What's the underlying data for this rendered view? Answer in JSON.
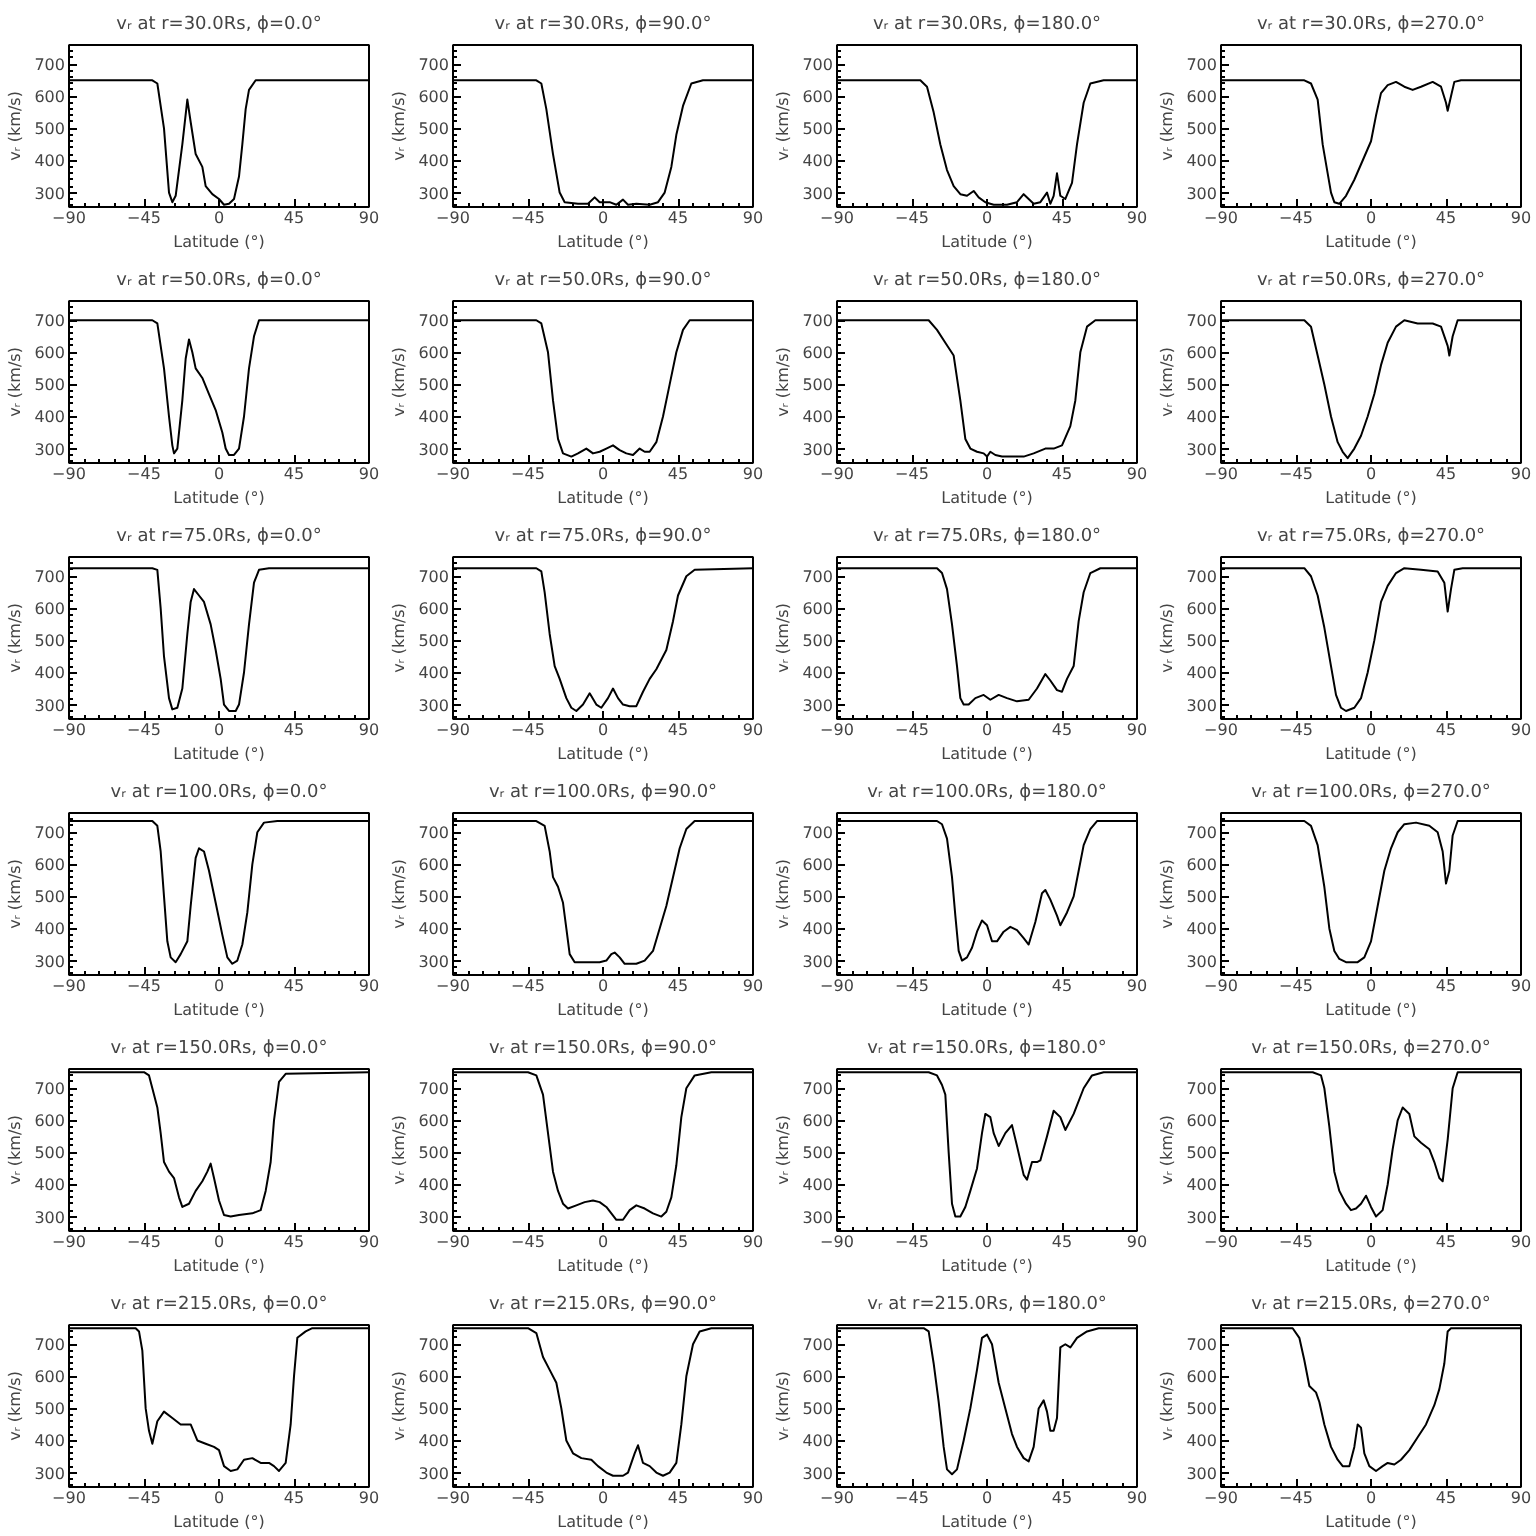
{
  "chart_data": [
    {
      "type": "line",
      "title": "vᵣ at r=30.0Rs, ϕ=0.0°",
      "xlabel": "Latitude (°)",
      "ylabel": "vᵣ (km/s)",
      "xlim": [
        -90,
        90
      ],
      "ylim": [
        255,
        760
      ],
      "xticks": [
        -90,
        -45,
        0,
        45,
        90
      ],
      "yticks": [
        300,
        400,
        500,
        600,
        700
      ],
      "x": [
        -90,
        -40,
        -37,
        -33,
        -30,
        -28,
        -26,
        -22,
        -19,
        -17,
        -14,
        -10,
        -8,
        -4,
        0,
        3,
        6,
        9,
        12,
        14,
        16,
        18,
        22,
        90
      ],
      "series": [
        {
          "color": "#000000",
          "values": [
            650,
            650,
            640,
            500,
            300,
            270,
            290,
            450,
            590,
            520,
            420,
            380,
            320,
            295,
            280,
            262,
            265,
            280,
            350,
            450,
            560,
            620,
            650,
            650
          ]
        }
      ]
    },
    {
      "type": "line",
      "title": "vᵣ at r=30.0Rs, ϕ=90.0°",
      "xlabel": "Latitude (°)",
      "ylabel": "vᵣ (km/s)",
      "xlim": [
        -90,
        90
      ],
      "ylim": [
        255,
        760
      ],
      "xticks": [
        -90,
        -45,
        0,
        45,
        90
      ],
      "yticks": [
        300,
        400,
        500,
        600,
        700
      ],
      "x": [
        -90,
        -40,
        -37,
        -34,
        -30,
        -26,
        -23,
        -15,
        -9,
        -5,
        -2,
        4,
        8,
        12,
        15,
        20,
        28,
        33,
        37,
        41,
        44,
        48,
        53,
        60,
        90
      ],
      "series": [
        {
          "color": "#000000",
          "values": [
            650,
            650,
            640,
            560,
            420,
            300,
            270,
            265,
            265,
            285,
            270,
            270,
            262,
            278,
            262,
            265,
            262,
            270,
            300,
            380,
            480,
            570,
            640,
            650,
            650
          ]
        }
      ]
    },
    {
      "type": "line",
      "title": "vᵣ at r=30.0Rs, ϕ=180.0°",
      "xlabel": "Latitude (°)",
      "ylabel": "vᵣ (km/s)",
      "xlim": [
        -90,
        90
      ],
      "ylim": [
        255,
        760
      ],
      "xticks": [
        -90,
        -45,
        0,
        45,
        90
      ],
      "yticks": [
        300,
        400,
        500,
        600,
        700
      ],
      "x": [
        -90,
        -40,
        -36,
        -32,
        -28,
        -24,
        -20,
        -16,
        -12,
        -8,
        -5,
        -1,
        4,
        8,
        12,
        18,
        22,
        25,
        28,
        32,
        36,
        38,
        40,
        42,
        44,
        47,
        51,
        54,
        58,
        62,
        70,
        90
      ],
      "series": [
        {
          "color": "#000000",
          "values": [
            650,
            650,
            630,
            550,
            450,
            370,
            320,
            295,
            290,
            305,
            285,
            270,
            262,
            262,
            262,
            270,
            295,
            280,
            265,
            270,
            300,
            265,
            290,
            360,
            290,
            280,
            330,
            450,
            580,
            640,
            650,
            650
          ]
        }
      ]
    },
    {
      "type": "line",
      "title": "vᵣ at r=30.0Rs, ϕ=270.0°",
      "xlabel": "Latitude (°)",
      "ylabel": "vᵣ (km/s)",
      "xlim": [
        -90,
        90
      ],
      "ylim": [
        255,
        760
      ],
      "xticks": [
        -90,
        -45,
        0,
        45,
        90
      ],
      "yticks": [
        300,
        400,
        500,
        600,
        700
      ],
      "x": [
        -90,
        -40,
        -36,
        -32,
        -29,
        -26,
        -24,
        -22,
        -19,
        -15,
        -10,
        -5,
        0,
        3,
        6,
        10,
        15,
        20,
        25,
        30,
        37,
        42,
        45,
        46,
        48,
        50,
        54,
        90
      ],
      "series": [
        {
          "color": "#000000",
          "values": [
            650,
            650,
            640,
            590,
            450,
            360,
            300,
            270,
            265,
            290,
            340,
            400,
            460,
            540,
            610,
            635,
            645,
            630,
            620,
            630,
            645,
            630,
            580,
            555,
            600,
            645,
            650,
            650
          ]
        }
      ]
    },
    {
      "type": "line",
      "title": "vᵣ at r=50.0Rs, ϕ=0.0°",
      "xlabel": "Latitude (°)",
      "ylabel": "vᵣ (km/s)",
      "xlim": [
        -90,
        90
      ],
      "ylim": [
        255,
        760
      ],
      "xticks": [
        -90,
        -45,
        0,
        45,
        90
      ],
      "yticks": [
        300,
        400,
        500,
        600,
        700
      ],
      "x": [
        -90,
        -40,
        -37,
        -33,
        -30,
        -28,
        -27,
        -25,
        -22,
        -20,
        -18,
        -16,
        -14,
        -10,
        -6,
        -2,
        2,
        4,
        6,
        9,
        12,
        15,
        18,
        21,
        24,
        90
      ],
      "series": [
        {
          "color": "#000000",
          "values": [
            700,
            700,
            690,
            550,
            400,
            310,
            285,
            300,
            450,
            580,
            640,
            600,
            550,
            520,
            470,
            420,
            350,
            300,
            280,
            280,
            300,
            400,
            550,
            650,
            700,
            700
          ]
        }
      ]
    },
    {
      "type": "line",
      "title": "vᵣ at r=50.0Rs, ϕ=90.0°",
      "xlabel": "Latitude (°)",
      "ylabel": "vᵣ (km/s)",
      "xlim": [
        -90,
        90
      ],
      "ylim": [
        255,
        760
      ],
      "xticks": [
        -90,
        -45,
        0,
        45,
        90
      ],
      "yticks": [
        300,
        400,
        500,
        600,
        700
      ],
      "x": [
        -90,
        -40,
        -37,
        -33,
        -30,
        -27,
        -24,
        -19,
        -15,
        -10,
        -6,
        -2,
        2,
        6,
        10,
        14,
        18,
        22,
        25,
        28,
        32,
        36,
        40,
        44,
        48,
        52,
        90
      ],
      "series": [
        {
          "color": "#000000",
          "values": [
            700,
            700,
            690,
            600,
            450,
            330,
            285,
            275,
            285,
            300,
            285,
            290,
            300,
            310,
            295,
            285,
            280,
            300,
            290,
            290,
            320,
            400,
            500,
            600,
            670,
            700,
            700
          ]
        }
      ]
    },
    {
      "type": "line",
      "title": "vᵣ at r=50.0Rs, ϕ=180.0°",
      "xlabel": "Latitude (°)",
      "ylabel": "vᵣ (km/s)",
      "xlim": [
        -90,
        90
      ],
      "ylim": [
        255,
        760
      ],
      "xticks": [
        -90,
        -45,
        0,
        45,
        90
      ],
      "yticks": [
        300,
        400,
        500,
        600,
        700
      ],
      "x": [
        -90,
        -35,
        -30,
        -25,
        -20,
        -16,
        -13,
        -10,
        -6,
        -2,
        0,
        2,
        5,
        9,
        15,
        22,
        28,
        35,
        40,
        45,
        50,
        53,
        56,
        60,
        65,
        90
      ],
      "series": [
        {
          "color": "#000000",
          "values": [
            700,
            700,
            670,
            630,
            590,
            450,
            330,
            300,
            290,
            285,
            275,
            290,
            280,
            275,
            275,
            275,
            285,
            300,
            300,
            310,
            370,
            450,
            600,
            680,
            700,
            700
          ]
        }
      ]
    },
    {
      "type": "line",
      "title": "vᵣ at r=50.0Rs, ϕ=270.0°",
      "xlabel": "Latitude (°)",
      "ylabel": "vᵣ (km/s)",
      "xlim": [
        -90,
        90
      ],
      "ylim": [
        255,
        760
      ],
      "xticks": [
        -90,
        -45,
        0,
        45,
        90
      ],
      "yticks": [
        300,
        400,
        500,
        600,
        700
      ],
      "x": [
        -90,
        -40,
        -36,
        -32,
        -28,
        -24,
        -20,
        -17,
        -14,
        -10,
        -6,
        -2,
        2,
        6,
        10,
        15,
        20,
        28,
        37,
        42,
        46,
        47,
        49,
        52,
        90
      ],
      "series": [
        {
          "color": "#000000",
          "values": [
            700,
            700,
            680,
            590,
            500,
            400,
            320,
            290,
            270,
            300,
            340,
            400,
            470,
            560,
            630,
            680,
            700,
            690,
            690,
            680,
            620,
            590,
            650,
            700,
            700
          ]
        }
      ]
    },
    {
      "type": "line",
      "title": "vᵣ at r=75.0Rs, ϕ=0.0°",
      "xlabel": "Latitude (°)",
      "ylabel": "vᵣ (km/s)",
      "xlim": [
        -90,
        90
      ],
      "ylim": [
        255,
        760
      ],
      "xticks": [
        -90,
        -45,
        0,
        45,
        90
      ],
      "yticks": [
        300,
        400,
        500,
        600,
        700
      ],
      "x": [
        -90,
        -40,
        -37,
        -35,
        -33,
        -30,
        -28,
        -25,
        -22,
        -19,
        -17,
        -15,
        -12,
        -9,
        -5,
        -2,
        1,
        3,
        6,
        10,
        12,
        15,
        18,
        21,
        24,
        30,
        90
      ],
      "series": [
        {
          "color": "#000000",
          "values": [
            725,
            725,
            720,
            600,
            450,
            320,
            285,
            290,
            350,
            520,
            620,
            660,
            640,
            620,
            550,
            470,
            380,
            300,
            280,
            280,
            300,
            400,
            550,
            680,
            720,
            725,
            725
          ]
        }
      ]
    },
    {
      "type": "line",
      "title": "vᵣ at r=75.0Rs, ϕ=90.0°",
      "xlabel": "Latitude (°)",
      "ylabel": "vᵣ (km/s)",
      "xlim": [
        -90,
        90
      ],
      "ylim": [
        255,
        760
      ],
      "xticks": [
        -90,
        -45,
        0,
        45,
        90
      ],
      "yticks": [
        300,
        400,
        500,
        600,
        700
      ],
      "x": [
        -90,
        -40,
        -37,
        -35,
        -32,
        -29,
        -26,
        -22,
        -19,
        -16,
        -12,
        -8,
        -4,
        -1,
        3,
        6,
        9,
        12,
        16,
        20,
        24,
        28,
        32,
        38,
        42,
        45,
        50,
        55,
        90
      ],
      "series": [
        {
          "color": "#000000",
          "values": [
            725,
            725,
            715,
            650,
            520,
            420,
            380,
            320,
            290,
            280,
            300,
            335,
            300,
            290,
            320,
            350,
            320,
            300,
            295,
            295,
            340,
            380,
            410,
            470,
            560,
            640,
            700,
            720,
            725
          ]
        }
      ]
    },
    {
      "type": "line",
      "title": "vᵣ at r=75.0Rs, ϕ=180.0°",
      "xlabel": "Latitude (°)",
      "ylabel": "vᵣ (km/s)",
      "xlim": [
        -90,
        90
      ],
      "ylim": [
        255,
        760
      ],
      "xticks": [
        -90,
        -45,
        0,
        45,
        90
      ],
      "yticks": [
        300,
        400,
        500,
        600,
        700
      ],
      "x": [
        -90,
        -30,
        -27,
        -24,
        -21,
        -18,
        -16,
        -14,
        -11,
        -7,
        -2,
        2,
        7,
        12,
        18,
        25,
        30,
        35,
        38,
        42,
        45,
        48,
        52,
        55,
        58,
        62,
        68,
        90
      ],
      "series": [
        {
          "color": "#000000",
          "values": [
            725,
            725,
            710,
            660,
            550,
            420,
            320,
            300,
            300,
            320,
            330,
            315,
            330,
            320,
            310,
            315,
            350,
            395,
            375,
            345,
            340,
            380,
            420,
            560,
            650,
            710,
            725,
            725
          ]
        }
      ]
    },
    {
      "type": "line",
      "title": "vᵣ at r=75.0Rs, ϕ=270.0°",
      "xlabel": "Latitude (°)",
      "ylabel": "vᵣ (km/s)",
      "xlim": [
        -90,
        90
      ],
      "ylim": [
        255,
        760
      ],
      "xticks": [
        -90,
        -45,
        0,
        45,
        90
      ],
      "yticks": [
        300,
        400,
        500,
        600,
        700
      ],
      "x": [
        -90,
        -40,
        -36,
        -32,
        -28,
        -24,
        -21,
        -18,
        -15,
        -10,
        -6,
        -2,
        2,
        6,
        10,
        15,
        20,
        30,
        40,
        44,
        46,
        48,
        50,
        55,
        90
      ],
      "series": [
        {
          "color": "#000000",
          "values": [
            725,
            725,
            700,
            640,
            540,
            420,
            330,
            290,
            280,
            290,
            320,
            400,
            500,
            620,
            670,
            710,
            725,
            720,
            715,
            680,
            590,
            660,
            720,
            725,
            725
          ]
        }
      ]
    },
    {
      "type": "line",
      "title": "vᵣ at r=100.0Rs, ϕ=0.0°",
      "xlabel": "Latitude (°)",
      "ylabel": "vᵣ (km/s)",
      "xlim": [
        -90,
        90
      ],
      "ylim": [
        255,
        760
      ],
      "xticks": [
        -90,
        -45,
        0,
        45,
        90
      ],
      "yticks": [
        300,
        400,
        500,
        600,
        700
      ],
      "x": [
        -90,
        -40,
        -37,
        -35,
        -33,
        -31,
        -29,
        -26,
        -23,
        -19,
        -17,
        -14,
        -12,
        -9,
        -6,
        -2,
        2,
        5,
        8,
        11,
        14,
        17,
        20,
        23,
        27,
        35,
        90
      ],
      "series": [
        {
          "color": "#000000",
          "values": [
            735,
            735,
            720,
            640,
            500,
            360,
            310,
            295,
            320,
            360,
            470,
            620,
            650,
            640,
            580,
            480,
            380,
            310,
            290,
            300,
            350,
            450,
            600,
            700,
            730,
            735,
            735
          ]
        }
      ]
    },
    {
      "type": "line",
      "title": "vᵣ at r=100.0Rs, ϕ=90.0°",
      "xlabel": "Latitude (°)",
      "ylabel": "vᵣ (km/s)",
      "xlim": [
        -90,
        90
      ],
      "ylim": [
        255,
        760
      ],
      "xticks": [
        -90,
        -45,
        0,
        45,
        90
      ],
      "yticks": [
        300,
        400,
        500,
        600,
        700
      ],
      "x": [
        -90,
        -40,
        -35,
        -32,
        -30,
        -27,
        -24,
        -22,
        -20,
        -17,
        -10,
        -2,
        2,
        5,
        7,
        10,
        13,
        20,
        25,
        30,
        34,
        38,
        42,
        46,
        50,
        55,
        90
      ],
      "series": [
        {
          "color": "#000000",
          "values": [
            735,
            735,
            720,
            640,
            560,
            530,
            480,
            400,
            320,
            295,
            295,
            295,
            300,
            320,
            325,
            310,
            290,
            290,
            300,
            330,
            400,
            470,
            560,
            650,
            710,
            735,
            735
          ]
        }
      ]
    },
    {
      "type": "line",
      "title": "vᵣ at r=100.0Rs, ϕ=180.0°",
      "xlabel": "Latitude (°)",
      "ylabel": "vᵣ (km/s)",
      "xlim": [
        -90,
        90
      ],
      "ylim": [
        255,
        760
      ],
      "xticks": [
        -90,
        -45,
        0,
        45,
        90
      ],
      "yticks": [
        300,
        400,
        500,
        600,
        700
      ],
      "x": [
        -90,
        -30,
        -27,
        -24,
        -21,
        -19,
        -17,
        -15,
        -12,
        -9,
        -6,
        -3,
        0,
        3,
        6,
        10,
        14,
        18,
        22,
        25,
        29,
        33,
        35,
        38,
        42,
        44,
        48,
        52,
        55,
        58,
        62,
        66,
        90
      ],
      "series": [
        {
          "color": "#000000",
          "values": [
            735,
            735,
            725,
            680,
            560,
            440,
            330,
            300,
            310,
            340,
            390,
            425,
            410,
            360,
            360,
            390,
            405,
            395,
            370,
            350,
            420,
            510,
            520,
            490,
            440,
            410,
            450,
            500,
            580,
            660,
            710,
            735,
            735
          ]
        }
      ]
    },
    {
      "type": "line",
      "title": "vᵣ at r=100.0Rs, ϕ=270.0°",
      "xlabel": "Latitude (°)",
      "ylabel": "vᵣ (km/s)",
      "xlim": [
        -90,
        90
      ],
      "ylim": [
        255,
        760
      ],
      "xticks": [
        -90,
        -45,
        0,
        45,
        90
      ],
      "yticks": [
        300,
        400,
        500,
        600,
        700
      ],
      "x": [
        -90,
        -40,
        -36,
        -32,
        -28,
        -25,
        -22,
        -19,
        -15,
        -8,
        -4,
        0,
        4,
        8,
        12,
        16,
        20,
        27,
        35,
        40,
        43,
        45,
        47,
        49,
        52,
        90
      ],
      "series": [
        {
          "color": "#000000",
          "values": [
            735,
            735,
            720,
            660,
            530,
            400,
            330,
            305,
            295,
            295,
            310,
            360,
            470,
            580,
            650,
            700,
            725,
            730,
            720,
            700,
            640,
            540,
            580,
            690,
            735,
            735
          ]
        }
      ]
    },
    {
      "type": "line",
      "title": "vᵣ at r=150.0Rs, ϕ=0.0°",
      "xlabel": "Latitude (°)",
      "ylabel": "vᵣ (km/s)",
      "xlim": [
        -90,
        90
      ],
      "ylim": [
        255,
        760
      ],
      "xticks": [
        -90,
        -45,
        0,
        45,
        90
      ],
      "yticks": [
        300,
        400,
        500,
        600,
        700
      ],
      "x": [
        -90,
        -45,
        -42,
        -40,
        -37,
        -35,
        -33,
        -30,
        -27,
        -24,
        -22,
        -18,
        -14,
        -10,
        -7,
        -5,
        -3,
        0,
        3,
        7,
        12,
        20,
        25,
        28,
        31,
        33,
        36,
        40,
        90
      ],
      "series": [
        {
          "color": "#000000",
          "values": [
            750,
            750,
            740,
            700,
            640,
            560,
            470,
            440,
            420,
            360,
            330,
            340,
            380,
            410,
            440,
            465,
            420,
            350,
            305,
            300,
            305,
            310,
            320,
            380,
            470,
            600,
            720,
            745,
            750
          ]
        }
      ]
    },
    {
      "type": "line",
      "title": "vᵣ at r=150.0Rs, ϕ=90.0°",
      "xlabel": "Latitude (°)",
      "ylabel": "vᵣ (km/s)",
      "xlim": [
        -90,
        90
      ],
      "ylim": [
        255,
        760
      ],
      "xticks": [
        -90,
        -45,
        0,
        45,
        90
      ],
      "yticks": [
        300,
        400,
        500,
        600,
        700
      ],
      "x": [
        -90,
        -45,
        -40,
        -36,
        -33,
        -30,
        -27,
        -24,
        -21,
        -16,
        -11,
        -6,
        -2,
        2,
        5,
        8,
        12,
        16,
        20,
        25,
        30,
        35,
        38,
        41,
        44,
        47,
        50,
        55,
        65,
        90
      ],
      "series": [
        {
          "color": "#000000",
          "values": [
            750,
            750,
            740,
            680,
            560,
            440,
            380,
            340,
            325,
            335,
            345,
            350,
            345,
            330,
            310,
            290,
            290,
            320,
            335,
            325,
            310,
            300,
            315,
            360,
            460,
            610,
            700,
            740,
            750,
            750
          ]
        }
      ]
    },
    {
      "type": "line",
      "title": "vᵣ at r=150.0Rs, ϕ=180.0°",
      "xlabel": "Latitude (°)",
      "ylabel": "vᵣ (km/s)",
      "xlim": [
        -90,
        90
      ],
      "ylim": [
        255,
        760
      ],
      "xticks": [
        -90,
        -45,
        0,
        45,
        90
      ],
      "yticks": [
        300,
        400,
        500,
        600,
        700
      ],
      "x": [
        -90,
        -35,
        -30,
        -27,
        -25,
        -23,
        -21,
        -19,
        -16,
        -13,
        -10,
        -6,
        -3,
        -1,
        2,
        4,
        7,
        11,
        15,
        18,
        22,
        24,
        27,
        30,
        32,
        36,
        40,
        44,
        47,
        52,
        58,
        63,
        70,
        90
      ],
      "series": [
        {
          "color": "#000000",
          "values": [
            750,
            750,
            740,
            710,
            680,
            500,
            340,
            300,
            300,
            330,
            380,
            450,
            560,
            620,
            610,
            560,
            520,
            560,
            585,
            520,
            430,
            415,
            470,
            470,
            475,
            550,
            630,
            610,
            570,
            620,
            700,
            740,
            750,
            750
          ]
        }
      ]
    },
    {
      "type": "line",
      "title": "vᵣ at r=150.0Rs, ϕ=270.0°",
      "xlabel": "Latitude (°)",
      "ylabel": "vᵣ (km/s)",
      "xlim": [
        -90,
        90
      ],
      "ylim": [
        255,
        760
      ],
      "xticks": [
        -90,
        -45,
        0,
        45,
        90
      ],
      "yticks": [
        300,
        400,
        500,
        600,
        700
      ],
      "x": [
        -90,
        -35,
        -30,
        -28,
        -25,
        -22,
        -19,
        -15,
        -12,
        -9,
        -6,
        -3,
        0,
        3,
        7,
        10,
        13,
        16,
        19,
        23,
        26,
        30,
        35,
        38,
        41,
        43,
        46,
        49,
        52,
        90
      ],
      "series": [
        {
          "color": "#000000",
          "values": [
            750,
            750,
            740,
            700,
            580,
            440,
            380,
            340,
            320,
            325,
            340,
            365,
            330,
            300,
            320,
            400,
            510,
            600,
            640,
            620,
            550,
            530,
            510,
            470,
            420,
            410,
            540,
            700,
            750,
            750
          ]
        }
      ]
    },
    {
      "type": "line",
      "title": "vᵣ at r=215.0Rs, ϕ=0.0°",
      "xlabel": "Latitude (°)",
      "ylabel": "vᵣ (km/s)",
      "xlim": [
        -90,
        90
      ],
      "ylim": [
        255,
        760
      ],
      "xticks": [
        -90,
        -45,
        0,
        45,
        90
      ],
      "yticks": [
        300,
        400,
        500,
        600,
        700
      ],
      "x": [
        -90,
        -50,
        -48,
        -46,
        -44,
        -42,
        -40,
        -37,
        -33,
        -28,
        -23,
        -17,
        -13,
        -8,
        -3,
        0,
        3,
        7,
        11,
        15,
        20,
        25,
        30,
        33,
        36,
        40,
        43,
        45,
        47,
        52,
        56,
        90
      ],
      "series": [
        {
          "color": "#000000",
          "values": [
            750,
            750,
            740,
            680,
            500,
            430,
            390,
            460,
            490,
            470,
            450,
            450,
            400,
            390,
            380,
            370,
            320,
            305,
            310,
            340,
            345,
            330,
            330,
            320,
            305,
            330,
            450,
            600,
            720,
            740,
            750,
            750
          ]
        }
      ]
    },
    {
      "type": "line",
      "title": "vᵣ at r=215.0Rs, ϕ=90.0°",
      "xlabel": "Latitude (°)",
      "ylabel": "vᵣ (km/s)",
      "xlim": [
        -90,
        90
      ],
      "ylim": [
        255,
        760
      ],
      "xticks": [
        -90,
        -45,
        0,
        45,
        90
      ],
      "yticks": [
        300,
        400,
        500,
        600,
        700
      ],
      "x": [
        -90,
        -45,
        -40,
        -36,
        -32,
        -28,
        -25,
        -22,
        -18,
        -13,
        -7,
        -3,
        2,
        6,
        12,
        15,
        19,
        21,
        24,
        28,
        32,
        36,
        40,
        44,
        47,
        50,
        54,
        58,
        65,
        90
      ],
      "series": [
        {
          "color": "#000000",
          "values": [
            750,
            750,
            735,
            660,
            620,
            580,
            500,
            400,
            360,
            345,
            340,
            320,
            300,
            290,
            290,
            300,
            360,
            385,
            330,
            320,
            300,
            290,
            300,
            330,
            450,
            600,
            700,
            740,
            750,
            750
          ]
        }
      ]
    },
    {
      "type": "line",
      "title": "vᵣ at r=215.0Rs, ϕ=180.0°",
      "xlabel": "Latitude (°)",
      "ylabel": "vᵣ (km/s)",
      "xlim": [
        -90,
        90
      ],
      "ylim": [
        255,
        760
      ],
      "xticks": [
        -90,
        -45,
        0,
        45,
        90
      ],
      "yticks": [
        300,
        400,
        500,
        600,
        700
      ],
      "x": [
        -90,
        -38,
        -35,
        -32,
        -29,
        -26,
        -24,
        -21,
        -18,
        -14,
        -10,
        -6,
        -3,
        0,
        3,
        7,
        11,
        15,
        18,
        22,
        25,
        28,
        31,
        34,
        36,
        38,
        40,
        42,
        44,
        47,
        50,
        54,
        60,
        67,
        90
      ],
      "series": [
        {
          "color": "#000000",
          "values": [
            750,
            750,
            740,
            640,
            520,
            380,
            310,
            295,
            310,
            400,
            500,
            620,
            720,
            730,
            700,
            580,
            500,
            420,
            380,
            345,
            335,
            380,
            500,
            525,
            490,
            430,
            430,
            470,
            690,
            700,
            690,
            720,
            740,
            750,
            750
          ]
        }
      ]
    },
    {
      "type": "line",
      "title": "vᵣ at r=215.0Rs, ϕ=270.0°",
      "xlabel": "Latitude (°)",
      "ylabel": "vᵣ (km/s)",
      "xlim": [
        -90,
        90
      ],
      "ylim": [
        255,
        760
      ],
      "xticks": [
        -90,
        -45,
        0,
        45,
        90
      ],
      "yticks": [
        300,
        400,
        500,
        600,
        700
      ],
      "x": [
        -90,
        -47,
        -43,
        -40,
        -37,
        -33,
        -31,
        -28,
        -24,
        -20,
        -17,
        -13,
        -10,
        -8,
        -6,
        -4,
        -1,
        3,
        7,
        10,
        14,
        18,
        23,
        28,
        33,
        38,
        41,
        44,
        46,
        48,
        90
      ],
      "series": [
        {
          "color": "#000000",
          "values": [
            750,
            750,
            720,
            650,
            570,
            550,
            520,
            450,
            380,
            340,
            320,
            320,
            380,
            450,
            440,
            360,
            320,
            305,
            320,
            330,
            325,
            340,
            370,
            410,
            450,
            510,
            560,
            640,
            740,
            750,
            750
          ]
        }
      ]
    }
  ]
}
